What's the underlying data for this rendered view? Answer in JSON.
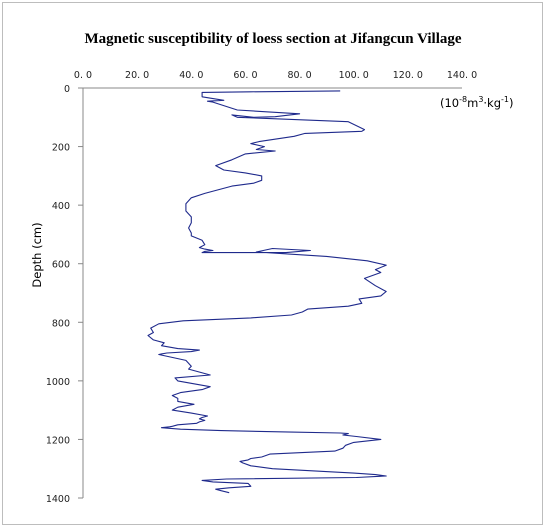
{
  "chart_data": {
    "type": "line",
    "title": "Magnetic susceptibility  of loess section at Jifangcun  Village",
    "xlabel": "",
    "ylabel": "Depth (cm)",
    "unit_label": {
      "prefix": "(10",
      "exp1": "-8",
      "mid": "m",
      "exp2": "3",
      "mid2": "·kg",
      "exp3": "-1",
      "suffix": ")"
    },
    "x_axis_position": "top",
    "y_axis_inverted": true,
    "xlim": [
      0,
      140
    ],
    "ylim": [
      0,
      1400
    ],
    "x_ticks": [
      "0. 0",
      "20. 0",
      "40. 0",
      "60. 0",
      "80. 0",
      "100. 0",
      "120. 0",
      "140. 0"
    ],
    "x_tick_values": [
      0,
      20,
      40,
      60,
      80,
      100,
      120,
      140
    ],
    "y_ticks": [
      "0",
      "200",
      "400",
      "600",
      "800",
      "1000",
      "1200",
      "1400"
    ],
    "y_tick_values": [
      0,
      200,
      400,
      600,
      800,
      1000,
      1200,
      1400
    ],
    "grid": false,
    "line_color": "#1f2a8c",
    "series": [
      {
        "x": [
          95,
          62,
          44,
          44,
          52,
          46,
          48,
          57,
          80,
          71,
          63,
          55,
          57,
          98,
          104,
          103,
          82,
          78,
          65,
          62,
          67,
          64,
          71,
          60,
          55,
          49,
          52,
          60,
          66,
          66,
          63,
          55,
          45,
          40,
          38,
          38,
          40,
          40,
          39,
          40,
          40,
          44,
          45,
          43,
          45,
          48,
          45,
          44,
          58,
          75,
          84,
          70,
          64,
          90,
          105,
          112,
          108,
          110,
          104,
          108,
          112,
          110,
          102,
          103,
          98,
          83,
          81,
          77,
          62,
          37,
          28,
          25,
          26,
          24,
          26,
          30,
          29,
          35,
          43,
          40,
          31,
          29,
          28,
          38,
          40,
          39,
          47,
          34,
          35,
          47,
          44,
          36,
          33,
          35,
          35,
          41,
          35,
          33,
          40,
          46,
          44,
          43,
          45,
          43,
          42,
          35,
          33,
          32,
          29,
          29,
          36,
          51,
          77,
          95,
          98,
          96,
          101,
          110,
          100,
          97,
          96,
          93,
          69,
          66,
          62,
          61,
          58,
          59,
          62,
          70,
          100,
          108,
          112,
          101,
          53,
          44,
          48,
          61,
          62,
          54,
          49,
          51,
          54
        ],
        "y": [
          10,
          13,
          15,
          30,
          42,
          45,
          48,
          75,
          88,
          98,
          100,
          92,
          100,
          115,
          142,
          148,
          155,
          165,
          183,
          190,
          200,
          210,
          215,
          225,
          245,
          265,
          280,
          290,
          300,
          315,
          325,
          335,
          360,
          375,
          395,
          420,
          440,
          460,
          478,
          495,
          505,
          520,
          535,
          545,
          550,
          555,
          558,
          562,
          562,
          562,
          555,
          548,
          560,
          575,
          590,
          605,
          620,
          630,
          650,
          675,
          695,
          710,
          720,
          735,
          745,
          755,
          765,
          775,
          785,
          795,
          805,
          820,
          835,
          845,
          860,
          870,
          880,
          890,
          895,
          900,
          905,
          908,
          910,
          930,
          950,
          960,
          980,
          990,
          1000,
          1020,
          1030,
          1040,
          1050,
          1060,
          1070,
          1080,
          1090,
          1100,
          1110,
          1120,
          1125,
          1130,
          1135,
          1140,
          1145,
          1150,
          1155,
          1157,
          1160,
          1160,
          1165,
          1170,
          1175,
          1178,
          1180,
          1185,
          1190,
          1200,
          1210,
          1220,
          1230,
          1240,
          1250,
          1260,
          1265,
          1270,
          1275,
          1280,
          1290,
          1300,
          1315,
          1320,
          1325,
          1330,
          1335,
          1340,
          1345,
          1350,
          1360,
          1365,
          1370,
          1375,
          1382
        ]
      }
    ]
  }
}
